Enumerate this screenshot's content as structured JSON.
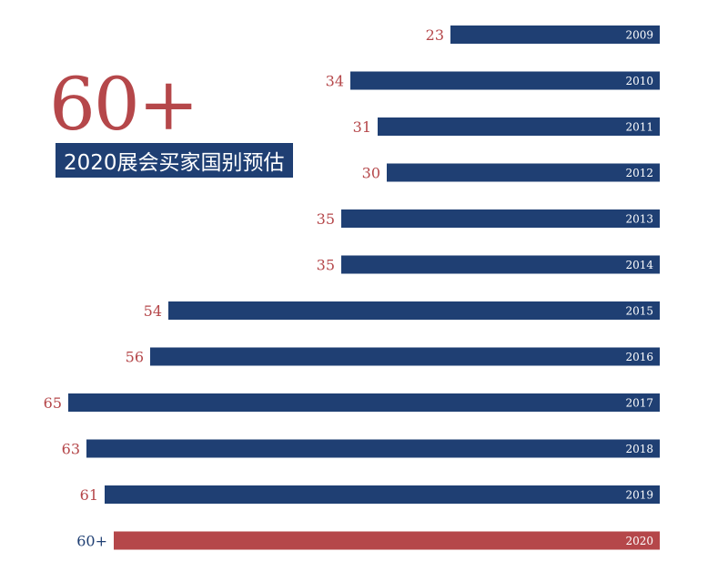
{
  "headline": {
    "big_number": "60+",
    "subtitle": "2020展会买家国别预估"
  },
  "colors": {
    "bar": "#1f3f73",
    "highlight": "#b5474a",
    "value_label": "#b5474a",
    "highlight_value_label": "#1f3f73",
    "year_label": "#ffffff"
  },
  "chart_data": {
    "type": "bar",
    "orientation": "horizontal",
    "categories": [
      "2009",
      "2010",
      "2011",
      "2012",
      "2013",
      "2014",
      "2015",
      "2016",
      "2017",
      "2018",
      "2019",
      "2020"
    ],
    "values": [
      23,
      34,
      31,
      30,
      35,
      35,
      54,
      56,
      65,
      63,
      61,
      60
    ],
    "value_labels": [
      "23",
      "34",
      "31",
      "30",
      "35",
      "35",
      "54",
      "56",
      "65",
      "63",
      "61",
      "60+"
    ],
    "highlight_category": "2020",
    "xlim": [
      0,
      65
    ],
    "title": "",
    "xlabel": "",
    "ylabel": "",
    "grid": false,
    "legend": "none"
  }
}
